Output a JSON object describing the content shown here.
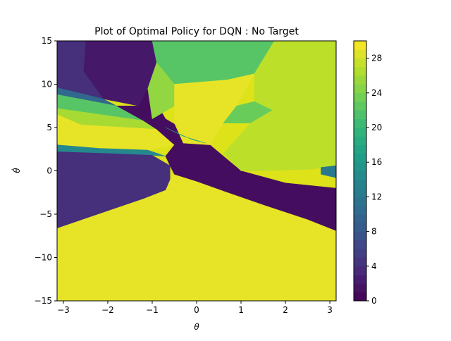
{
  "chart_data": {
    "type": "heatmap",
    "title": "Plot of Optimal Policy for DQN : No Target",
    "xlabel": "θ",
    "ylabel": "θ̇",
    "xlim": [
      -3.14159,
      3.14159
    ],
    "ylim": [
      -15,
      15
    ],
    "x_ticks": [
      -3,
      -2,
      -1,
      0,
      1,
      2,
      3
    ],
    "x_tick_labels": [
      "−3",
      "−2",
      "−1",
      "0",
      "1",
      "2",
      "3"
    ],
    "y_ticks": [
      -15,
      -10,
      -5,
      0,
      5,
      10,
      15
    ],
    "y_tick_labels": [
      "−15",
      "−10",
      "−5",
      "0",
      "5",
      "10",
      "15"
    ],
    "colorbar": {
      "min": 0,
      "max": 30,
      "ticks": [
        0,
        4,
        8,
        12,
        16,
        20,
        24,
        28
      ],
      "tick_labels": [
        "0",
        "4",
        "8",
        "12",
        "16",
        "20",
        "24",
        "28"
      ],
      "levels": 30,
      "colormap": "viridis"
    },
    "regions": [
      {
        "name": "lower-yellow",
        "action_level": 29,
        "polygon": [
          [
            -3.14,
            -6.6
          ],
          [
            -2,
            -4.6
          ],
          [
            -1.2,
            -3.2
          ],
          [
            -0.7,
            -2.2
          ],
          [
            -0.6,
            -1.0
          ],
          [
            -0.5,
            -0.4
          ],
          [
            0,
            -1.2
          ],
          [
            0.6,
            -2.3
          ],
          [
            1.5,
            -3.9
          ],
          [
            2.5,
            -5.6
          ],
          [
            3.14,
            -6.9
          ],
          [
            3.14,
            -15
          ],
          [
            -3.14,
            -15
          ]
        ]
      },
      {
        "name": "upper-left-dark-purple",
        "action_level": 2,
        "polygon": [
          [
            -2.5,
            15
          ],
          [
            -1.0,
            15
          ],
          [
            -0.9,
            12.5
          ],
          [
            -1.1,
            9.5
          ],
          [
            -1.3,
            7.5
          ],
          [
            -2.1,
            8.3
          ],
          [
            -2.55,
            11.5
          ]
        ]
      },
      {
        "name": "upper-left-indigo",
        "action_level": 4,
        "polygon": [
          [
            -3.14,
            15
          ],
          [
            -2.5,
            15
          ],
          [
            -2.55,
            11.5
          ],
          [
            -2.1,
            8.3
          ],
          [
            -3.14,
            9.6
          ]
        ]
      },
      {
        "name": "upper-left-blue",
        "action_level": 10,
        "polygon": [
          [
            -3.14,
            9.6
          ],
          [
            -2.1,
            8.3
          ],
          [
            -1.8,
            7.5
          ],
          [
            -3.14,
            8.8
          ]
        ]
      },
      {
        "name": "upper-left-green",
        "action_level": 22,
        "polygon": [
          [
            -3.14,
            8.8
          ],
          [
            -1.8,
            7.5
          ],
          [
            -1.2,
            5.8
          ],
          [
            -3.14,
            7.2
          ]
        ]
      },
      {
        "name": "upper-left-yellow-green",
        "action_level": 26,
        "polygon": [
          [
            -3.14,
            7.2
          ],
          [
            -1.2,
            5.8
          ],
          [
            -0.9,
            4.8
          ],
          [
            -2.6,
            5.3
          ],
          [
            -3.14,
            6.5
          ]
        ]
      },
      {
        "name": "left-yellow",
        "action_level": 29,
        "polygon": [
          [
            -3.14,
            6.5
          ],
          [
            -2.6,
            5.3
          ],
          [
            -0.9,
            4.8
          ],
          [
            -0.5,
            3.0
          ],
          [
            -1.1,
            2.4
          ],
          [
            -2.2,
            2.6
          ],
          [
            -3.14,
            3.0
          ]
        ]
      },
      {
        "name": "left-teal",
        "action_level": 14,
        "polygon": [
          [
            -3.14,
            3.0
          ],
          [
            -2.2,
            2.6
          ],
          [
            -1.1,
            2.4
          ],
          [
            -0.7,
            1.7
          ],
          [
            -1.0,
            1.8
          ],
          [
            -2.0,
            2.0
          ],
          [
            -3.14,
            2.2
          ]
        ]
      },
      {
        "name": "left-indigo",
        "action_level": 4,
        "polygon": [
          [
            -3.14,
            2.2
          ],
          [
            -2.0,
            2.0
          ],
          [
            -1.0,
            1.8
          ],
          [
            -0.6,
            0.6
          ],
          [
            -0.6,
            -1.0
          ],
          [
            -0.7,
            -2.2
          ],
          [
            -1.2,
            -3.2
          ],
          [
            -2,
            -4.6
          ],
          [
            -3.14,
            -6.6
          ]
        ]
      },
      {
        "name": "diagonal-dark-band",
        "action_level": 1,
        "polygon": [
          [
            -1.3,
            7.5
          ],
          [
            -1.1,
            9.5
          ],
          [
            -0.7,
            6.0
          ],
          [
            0.3,
            3.0
          ],
          [
            1.0,
            0
          ],
          [
            2.0,
            -1.4
          ],
          [
            3.14,
            -2.0
          ],
          [
            3.14,
            -6.9
          ],
          [
            2.5,
            -5.6
          ],
          [
            1.5,
            -3.9
          ],
          [
            0.6,
            -2.3
          ],
          [
            0,
            -1.2
          ],
          [
            -0.5,
            -0.4
          ],
          [
            -0.6,
            0.6
          ],
          [
            -0.7,
            1.7
          ],
          [
            -0.5,
            3.0
          ],
          [
            -0.9,
            4.8
          ],
          [
            -1.2,
            5.8
          ],
          [
            -1.8,
            7.5
          ]
        ]
      },
      {
        "name": "upper-green",
        "action_level": 22,
        "polygon": [
          [
            -1.0,
            15
          ],
          [
            1.75,
            15
          ],
          [
            1.3,
            11.2
          ],
          [
            0.7,
            10.5
          ],
          [
            -0.5,
            10.0
          ],
          [
            -0.9,
            12.5
          ]
        ]
      },
      {
        "name": "upper-lime-patch",
        "action_level": 25,
        "polygon": [
          [
            -0.9,
            12.5
          ],
          [
            -0.5,
            10.0
          ],
          [
            -0.5,
            7.5
          ],
          [
            -1.0,
            6.0
          ],
          [
            -1.1,
            9.5
          ]
        ]
      },
      {
        "name": "upper-middle-yellow",
        "action_level": 29,
        "polygon": [
          [
            -0.5,
            10.0
          ],
          [
            0.7,
            10.5
          ],
          [
            1.3,
            11.2
          ],
          [
            0.9,
            7.5
          ],
          [
            0.6,
            5.5
          ],
          [
            0.3,
            3.0
          ],
          [
            -0.3,
            3.2
          ],
          [
            -0.5,
            5.5
          ],
          [
            -0.5,
            7.5
          ]
        ]
      },
      {
        "name": "right-yellow-green",
        "action_level": 27,
        "polygon": [
          [
            1.75,
            15
          ],
          [
            3.14,
            15
          ],
          [
            3.14,
            0.6
          ],
          [
            2.6,
            0.2
          ],
          [
            1.5,
            0
          ],
          [
            1.0,
            0
          ],
          [
            0.6,
            2.0
          ],
          [
            1.3,
            6.0
          ],
          [
            1.3,
            11.2
          ]
        ]
      },
      {
        "name": "right-green-patch",
        "action_level": 23,
        "polygon": [
          [
            0.9,
            7.5
          ],
          [
            1.3,
            8.0
          ],
          [
            1.7,
            7.0
          ],
          [
            1.2,
            5.5
          ],
          [
            0.6,
            5.5
          ]
        ]
      },
      {
        "name": "right-teal-tip",
        "action_level": 12,
        "polygon": [
          [
            2.8,
            0.4
          ],
          [
            3.14,
            0.6
          ],
          [
            3.14,
            -0.8
          ],
          [
            2.8,
            -0.4
          ]
        ]
      },
      {
        "name": "center-teal-sliver",
        "action_level": 17,
        "polygon": [
          [
            -0.7,
            5.0
          ],
          [
            -0.3,
            4.0
          ],
          [
            0.2,
            3.2
          ],
          [
            -0.1,
            3.6
          ]
        ]
      }
    ]
  }
}
